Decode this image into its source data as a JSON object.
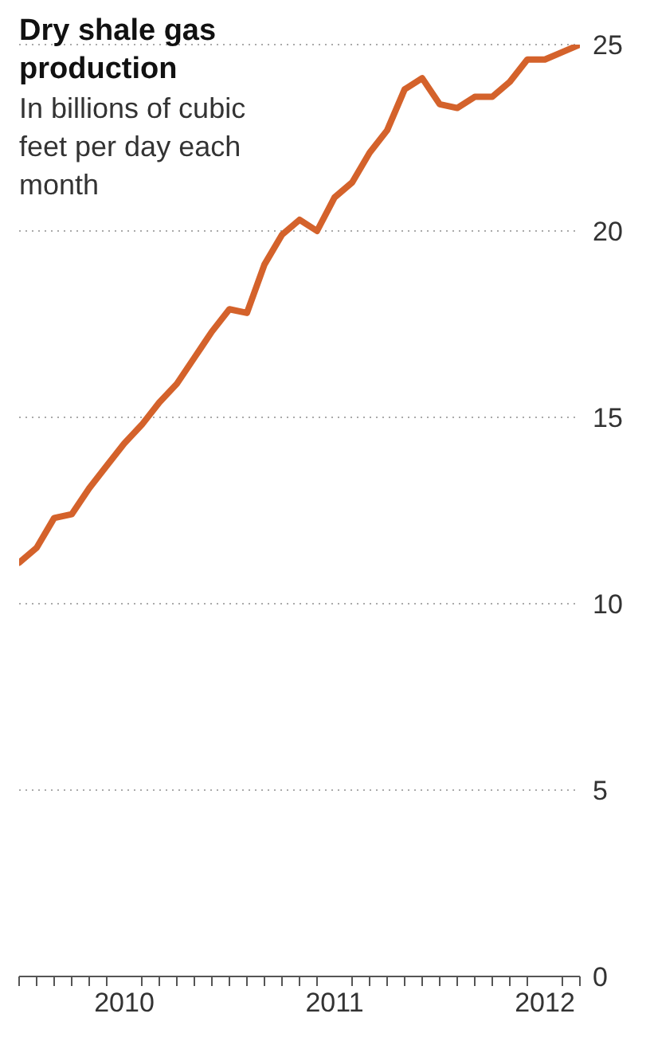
{
  "chart_data": {
    "type": "line",
    "title": "Dry shale gas production",
    "subtitle": "In billions of cubic feet per day each month",
    "x": [
      "2010-01",
      "2010-02",
      "2010-03",
      "2010-04",
      "2010-05",
      "2010-06",
      "2010-07",
      "2010-08",
      "2010-09",
      "2010-10",
      "2010-11",
      "2010-12",
      "2011-01",
      "2011-02",
      "2011-03",
      "2011-04",
      "2011-05",
      "2011-06",
      "2011-07",
      "2011-08",
      "2011-09",
      "2011-10",
      "2011-11",
      "2011-12",
      "2012-01",
      "2012-02",
      "2012-03",
      "2012-04",
      "2012-05",
      "2012-06",
      "2012-07",
      "2012-08",
      "2012-09"
    ],
    "series": [
      {
        "color": "#d4622b",
        "values": [
          11.1,
          11.5,
          12.3,
          12.4,
          13.1,
          13.7,
          14.3,
          14.8,
          15.4,
          15.9,
          16.6,
          17.3,
          17.9,
          17.8,
          19.1,
          19.9,
          20.3,
          20.0,
          20.9,
          21.3,
          22.1,
          22.7,
          23.8,
          24.1,
          23.4,
          23.3,
          23.6,
          23.6,
          24.0,
          24.6,
          24.6,
          24.8,
          25.0
        ]
      }
    ],
    "xlim": [
      "2010-01",
      "2012-09"
    ],
    "xticks": [
      {
        "value": "2010-01",
        "label": null
      },
      {
        "value": "2010-02",
        "label": null
      },
      {
        "value": "2010-03",
        "label": null
      },
      {
        "value": "2010-04",
        "label": null
      },
      {
        "value": "2010-05",
        "label": null
      },
      {
        "value": "2010-06",
        "label": null
      },
      {
        "value": "2010-07",
        "label": "2010"
      },
      {
        "value": "2010-08",
        "label": null
      },
      {
        "value": "2010-09",
        "label": null
      },
      {
        "value": "2010-10",
        "label": null
      },
      {
        "value": "2010-11",
        "label": null
      },
      {
        "value": "2010-12",
        "label": null
      },
      {
        "value": "2011-01",
        "label": null
      },
      {
        "value": "2011-02",
        "label": null
      },
      {
        "value": "2011-03",
        "label": null
      },
      {
        "value": "2011-04",
        "label": null
      },
      {
        "value": "2011-05",
        "label": null
      },
      {
        "value": "2011-06",
        "label": null
      },
      {
        "value": "2011-07",
        "label": "2011"
      },
      {
        "value": "2011-08",
        "label": null
      },
      {
        "value": "2011-09",
        "label": null
      },
      {
        "value": "2011-10",
        "label": null
      },
      {
        "value": "2011-11",
        "label": null
      },
      {
        "value": "2011-12",
        "label": null
      },
      {
        "value": "2012-01",
        "label": null
      },
      {
        "value": "2012-02",
        "label": null
      },
      {
        "value": "2012-03",
        "label": null
      },
      {
        "value": "2012-04",
        "label": null
      },
      {
        "value": "2012-05",
        "label": null
      },
      {
        "value": "2012-06",
        "label": null
      },
      {
        "value": "2012-07",
        "label": "2012"
      },
      {
        "value": "2012-08",
        "label": null
      },
      {
        "value": "2012-09",
        "label": null
      }
    ],
    "ylim": [
      0,
      25
    ],
    "yticks": [
      0,
      5,
      10,
      15,
      20,
      25
    ],
    "grid": "y",
    "marker": "none",
    "line_style": "solid"
  }
}
